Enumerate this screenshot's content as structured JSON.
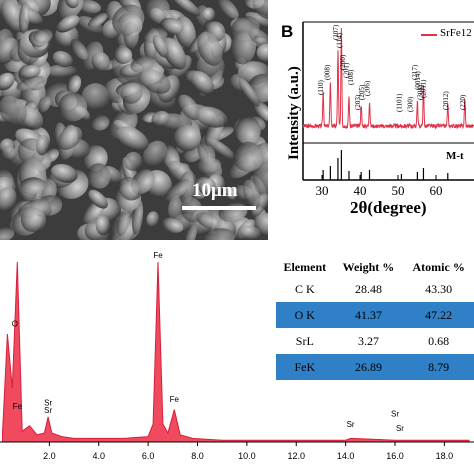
{
  "panel_a": {
    "scale_label": "10μm"
  },
  "panel_b": {
    "letter": "B",
    "legend": "SrFe12",
    "ylabel": "Intensity (a.u.)",
    "xlabel": "2θ(degree)",
    "reference_label": "M-t",
    "peak_labels": [
      "(110)",
      "(008)",
      "(107)",
      "(114)",
      "(200)",
      "(201)",
      "(108)",
      "(203)",
      "(205)",
      "(206)",
      "(1101)",
      "(300)",
      "(217)",
      "(0014)",
      "(304)",
      "(2011)",
      "(2012)",
      "(220)"
    ],
    "colors": {
      "pattern": "#e0334a",
      "reference": "#000000"
    }
  },
  "panel_c": {
    "table": {
      "headers": [
        "Element",
        "Weight %",
        "Atomic %"
      ],
      "rows": [
        [
          "C K",
          "28.48",
          "43.30"
        ],
        [
          "O K",
          "41.37",
          "47.22"
        ],
        [
          "SrL",
          "3.27",
          "0.68"
        ],
        [
          "FeK",
          "26.89",
          "8.79"
        ]
      ]
    },
    "peak_labels": [
      "O",
      "Fe",
      "Sr",
      "Fe",
      "Fe",
      "Sr",
      "Sr",
      "Sr",
      "Sr"
    ],
    "colors": {
      "spectrum": "#d81f3c",
      "fill": "#f04a5f",
      "table_highlight": "#2f80c6"
    }
  },
  "chart_data": [
    {
      "type": "line",
      "title": "",
      "xlabel": "2θ(degree)",
      "ylabel": "Intensity (a.u.)",
      "x_ticks": [
        30,
        40,
        50,
        60
      ],
      "xlim": [
        25,
        70
      ],
      "series": [
        {
          "name": "SrFe12",
          "x": [
            30.3,
            32.2,
            34.2,
            35.1,
            37.1,
            40.3,
            42.5,
            55.1,
            56.7,
            63.1,
            67.6
          ],
          "y": [
            35,
            45,
            75,
            100,
            30,
            22,
            25,
            25,
            40,
            22,
            28
          ]
        }
      ],
      "reference_ticks": [
        30.3,
        32.2,
        34.2,
        35.1,
        37.1,
        40.3,
        42.5,
        50.9,
        55.1,
        56.7,
        63.1
      ]
    },
    {
      "type": "area",
      "title": "",
      "xlabel": "",
      "ylabel": "",
      "x_ticks": [
        "2.0",
        "4.0",
        "6.0",
        "8.0",
        "10.0",
        "12.0",
        "14.0",
        "16.0",
        "18.0"
      ],
      "xlim": [
        0,
        19.2
      ],
      "x": [
        0.1,
        0.3,
        0.5,
        0.7,
        0.9,
        1.2,
        1.5,
        1.8,
        1.95,
        2.1,
        2.5,
        3.0,
        4.0,
        5.0,
        6.0,
        6.2,
        6.4,
        6.6,
        6.8,
        7.06,
        7.3,
        7.8,
        9.0,
        11.0,
        14.0,
        14.2,
        16.0,
        19.0
      ],
      "y": [
        5,
        60,
        30,
        100,
        6,
        9,
        4,
        5,
        14,
        5,
        3,
        2,
        2,
        2,
        3,
        10,
        100,
        10,
        5,
        18,
        4,
        2,
        1,
        1,
        1,
        2,
        1,
        1
      ]
    }
  ]
}
